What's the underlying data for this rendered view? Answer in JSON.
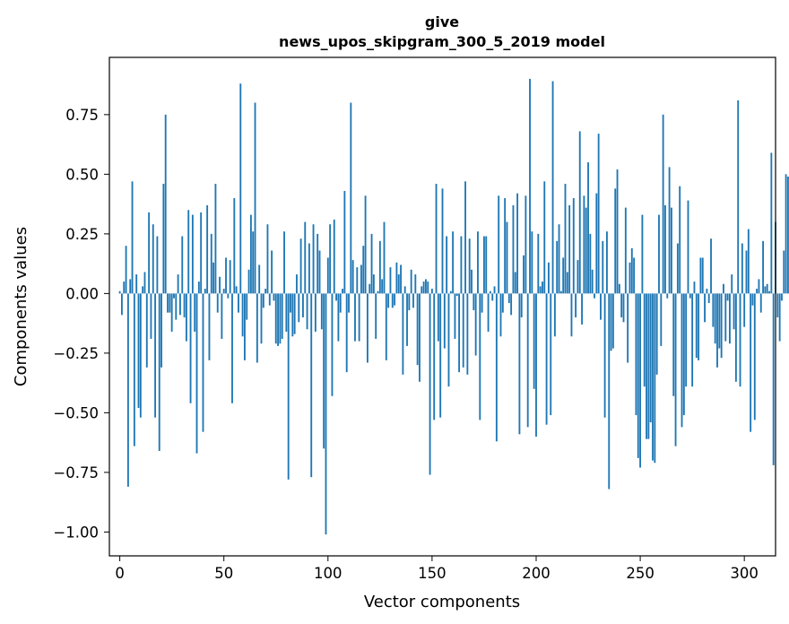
{
  "chart_data": {
    "type": "bar",
    "title_line1": "give",
    "title_line2": "news_upos_skipgram_300_5_2019 model",
    "xlabel": "Vector components",
    "ylabel": "Components values",
    "xlim": [
      -5,
      315
    ],
    "ylim": [
      -1.1,
      0.99
    ],
    "xticks": [
      0,
      50,
      100,
      150,
      200,
      250,
      300
    ],
    "xtick_labels": [
      "0",
      "50",
      "100",
      "150",
      "200",
      "250",
      "300"
    ],
    "yticks": [
      -1.0,
      -0.75,
      -0.5,
      -0.25,
      0.0,
      0.25,
      0.5,
      0.75
    ],
    "ytick_labels": [
      "−1.00",
      "−0.75",
      "−0.50",
      "−0.25",
      "0.00",
      "0.25",
      "0.50",
      "0.75"
    ],
    "bar_color": "#1f77b4",
    "grid": false,
    "values": [
      0.01,
      -0.09,
      0.05,
      0.2,
      -0.81,
      0.06,
      0.47,
      -0.64,
      0.08,
      -0.48,
      -0.52,
      0.03,
      0.09,
      -0.31,
      0.34,
      -0.19,
      0.29,
      -0.52,
      0.24,
      -0.66,
      -0.31,
      0.46,
      0.75,
      -0.08,
      -0.08,
      -0.16,
      -0.02,
      -0.11,
      0.08,
      -0.09,
      0.24,
      -0.1,
      -0.2,
      0.35,
      -0.46,
      0.33,
      -0.16,
      -0.67,
      0.05,
      0.34,
      -0.58,
      0.02,
      0.37,
      -0.28,
      0.25,
      0.13,
      0.46,
      -0.08,
      0.07,
      -0.19,
      0.02,
      0.15,
      -0.02,
      0.14,
      -0.46,
      0.4,
      0.03,
      -0.08,
      0.88,
      -0.18,
      -0.28,
      -0.11,
      0.1,
      0.33,
      0.26,
      0.8,
      -0.29,
      0.12,
      -0.21,
      -0.06,
      0.02,
      0.29,
      -0.05,
      0.18,
      -0.03,
      -0.21,
      -0.22,
      -0.21,
      -0.19,
      0.26,
      -0.16,
      -0.78,
      -0.08,
      -0.18,
      -0.17,
      0.08,
      -0.12,
      0.23,
      -0.1,
      0.3,
      -0.15,
      0.21,
      -0.77,
      0.29,
      -0.16,
      0.25,
      0.18,
      -0.15,
      -0.65,
      -1.01,
      0.15,
      0.29,
      -0.43,
      0.31,
      -0.03,
      -0.2,
      -0.08,
      0.02,
      0.43,
      -0.33,
      -0.08,
      0.8,
      0.14,
      -0.2,
      0.11,
      -0.2,
      0.12,
      0.2,
      0.41,
      -0.29,
      0.04,
      0.25,
      0.08,
      -0.19,
      0.01,
      0.22,
      0.06,
      0.3,
      -0.28,
      -0.06,
      0.11,
      -0.06,
      -0.05,
      0.13,
      0.08,
      0.12,
      -0.34,
      0.03,
      -0.22,
      -0.07,
      0.1,
      -0.06,
      0.08,
      -0.3,
      -0.37,
      0.03,
      0.05,
      0.06,
      0.05,
      -0.76,
      0.02,
      -0.53,
      0.46,
      -0.2,
      -0.52,
      0.44,
      -0.23,
      0.24,
      -0.39,
      0.01,
      0.26,
      -0.19,
      -0.01,
      -0.33,
      0.24,
      -0.31,
      0.47,
      -0.34,
      0.23,
      0.1,
      -0.07,
      -0.26,
      0.26,
      -0.53,
      -0.08,
      0.24,
      0.24,
      -0.16,
      0.01,
      -0.03,
      0.03,
      -0.62,
      0.41,
      -0.18,
      -0.08,
      0.4,
      0.3,
      -0.04,
      -0.09,
      0.37,
      0.09,
      0.42,
      -0.59,
      -0.1,
      0.16,
      0.41,
      -0.56,
      0.9,
      0.26,
      -0.4,
      -0.6,
      0.25,
      0.03,
      0.05,
      0.47,
      -0.55,
      0.13,
      -0.51,
      0.89,
      -0.18,
      0.22,
      0.29,
      0.01,
      0.15,
      0.46,
      0.09,
      0.37,
      -0.18,
      0.4,
      -0.1,
      0.14,
      0.68,
      -0.13,
      0.41,
      0.36,
      0.55,
      0.25,
      0.1,
      -0.02,
      0.42,
      0.67,
      -0.11,
      0.22,
      -0.52,
      0.26,
      -0.82,
      -0.24,
      -0.23,
      0.44,
      0.52,
      0.04,
      -0.1,
      -0.12,
      0.36,
      -0.29,
      0.13,
      0.19,
      0.15,
      -0.51,
      -0.69,
      -0.73,
      0.33,
      -0.39,
      -0.61,
      -0.61,
      -0.54,
      -0.7,
      -0.71,
      -0.34,
      0.33,
      -0.22,
      0.75,
      0.37,
      -0.02,
      0.53,
      0.36,
      -0.43,
      -0.64,
      0.21,
      0.45,
      -0.56,
      -0.51,
      -0.39,
      0.39,
      -0.02,
      -0.39,
      0.05,
      -0.27,
      -0.28,
      0.15,
      0.15,
      -0.12,
      0.02,
      -0.04,
      0.23,
      -0.14,
      -0.21,
      -0.31,
      -0.23,
      -0.27,
      0.04,
      -0.2,
      -0.03,
      -0.21,
      0.08,
      -0.15,
      -0.37,
      0.81,
      -0.39,
      0.21,
      -0.14,
      0.18,
      0.27,
      -0.58,
      -0.05,
      -0.53,
      0.02,
      0.06,
      -0.08,
      0.22,
      0.03,
      0.04,
      0.01,
      0.59,
      -0.72,
      0.3,
      -0.1,
      -0.2,
      -0.03,
      0.18,
      0.5,
      0.49,
      0.15
    ]
  }
}
